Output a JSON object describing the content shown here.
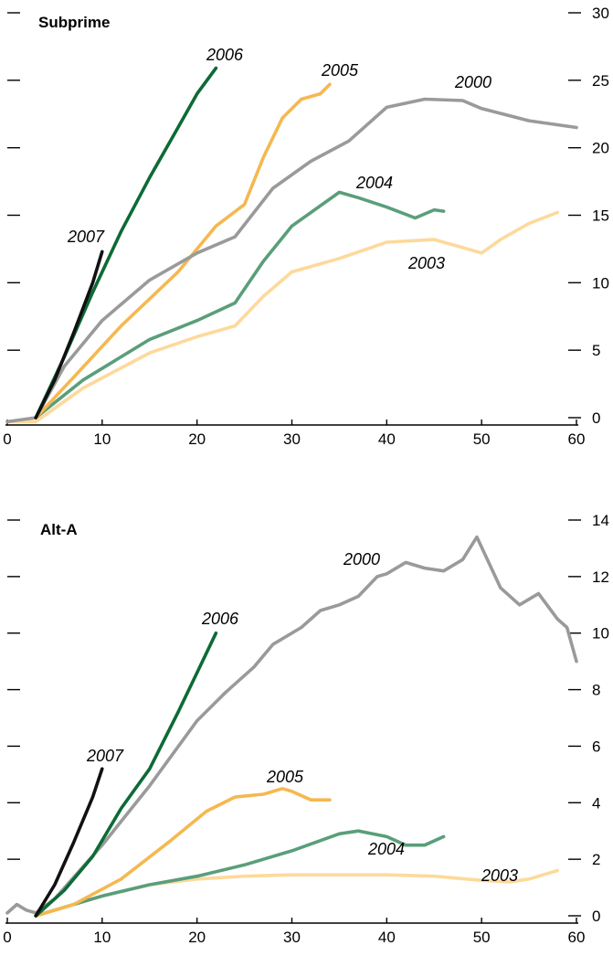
{
  "chart_data": [
    {
      "type": "line",
      "title": "Subprime",
      "xlim": [
        0,
        60
      ],
      "ylim": [
        0,
        30
      ],
      "x_ticks": [
        "0",
        "10",
        "20",
        "30",
        "40",
        "50",
        "60"
      ],
      "y_ticks": [
        "0",
        "5",
        "10",
        "15",
        "20",
        "25",
        "30"
      ],
      "legend": "none",
      "grid": false,
      "series": [
        {
          "name": "2000",
          "color": "#9a9a9a",
          "x": [
            0,
            3,
            6,
            10,
            15,
            20,
            24,
            28,
            32,
            36,
            40,
            44,
            48,
            50,
            55,
            60
          ],
          "y": [
            -0.3,
            0,
            3.8,
            7.2,
            10.2,
            12.2,
            13.4,
            17.0,
            19.0,
            20.5,
            23.0,
            23.6,
            23.5,
            22.9,
            22.0,
            21.5
          ]
        },
        {
          "name": "2003",
          "color": "#fdd99b",
          "x": [
            0,
            3,
            8,
            15,
            20,
            24,
            27,
            30,
            35,
            40,
            45,
            48,
            50,
            52,
            55,
            58
          ],
          "y": [
            -0.3,
            -0.3,
            2.2,
            4.8,
            6.0,
            6.8,
            9.0,
            10.8,
            11.8,
            13.0,
            13.2,
            12.6,
            12.2,
            13.2,
            14.4,
            15.2
          ]
        },
        {
          "name": "2004",
          "color": "#5a9e7a",
          "x": [
            3,
            8,
            15,
            20,
            24,
            27,
            30,
            35,
            37,
            40,
            43,
            45,
            46
          ],
          "y": [
            0,
            2.8,
            5.8,
            7.2,
            8.5,
            11.6,
            14.2,
            16.7,
            16.3,
            15.6,
            14.8,
            15.4,
            15.3
          ]
        },
        {
          "name": "2005",
          "color": "#f5b850",
          "x": [
            3,
            7,
            12,
            18,
            22,
            25,
            27,
            29,
            31,
            33,
            34
          ],
          "y": [
            0,
            3.0,
            6.8,
            10.8,
            14.2,
            15.8,
            19.3,
            22.2,
            23.6,
            24.0,
            24.7
          ]
        },
        {
          "name": "2006",
          "color": "#0c6b35",
          "x": [
            3,
            6,
            9,
            12,
            15,
            18,
            20,
            22
          ],
          "y": [
            0,
            4.5,
            9.3,
            13.8,
            17.8,
            21.5,
            24.0,
            25.9
          ]
        },
        {
          "name": "2007",
          "color": "#111111",
          "x": [
            3,
            5,
            7,
            9,
            10
          ],
          "y": [
            0,
            2.8,
            6.3,
            10.0,
            12.3
          ]
        }
      ]
    },
    {
      "type": "line",
      "title": "Alt-A",
      "xlim": [
        0,
        60
      ],
      "ylim": [
        0,
        14
      ],
      "x_ticks": [
        "0",
        "10",
        "20",
        "30",
        "40",
        "50",
        "60"
      ],
      "y_ticks": [
        "0",
        "2",
        "4",
        "6",
        "8",
        "10",
        "12",
        "14"
      ],
      "legend": "none",
      "grid": false,
      "series": [
        {
          "name": "2000",
          "color": "#9a9a9a",
          "x": [
            0,
            1,
            2,
            3,
            5,
            10,
            15,
            20,
            23,
            26,
            28,
            31,
            33,
            35,
            37,
            39,
            40,
            42,
            44,
            46,
            48,
            49.5,
            52,
            54,
            56,
            58,
            59,
            60
          ],
          "y": [
            0.1,
            0.4,
            0.2,
            0.1,
            0.6,
            2.5,
            4.6,
            6.9,
            7.9,
            8.8,
            9.6,
            10.2,
            10.8,
            11.0,
            11.3,
            12.0,
            12.1,
            12.5,
            12.3,
            12.2,
            12.6,
            13.4,
            11.6,
            11.0,
            11.4,
            10.5,
            10.2,
            9.0
          ]
        },
        {
          "name": "2003",
          "color": "#fdd99b",
          "x": [
            3,
            6,
            10,
            15,
            20,
            25,
            30,
            35,
            40,
            45,
            50,
            53,
            55,
            58
          ],
          "y": [
            0,
            0.3,
            0.7,
            1.1,
            1.3,
            1.4,
            1.45,
            1.45,
            1.45,
            1.4,
            1.25,
            1.2,
            1.3,
            1.6
          ]
        },
        {
          "name": "2004",
          "color": "#5a9e7a",
          "x": [
            3,
            6,
            10,
            15,
            20,
            25,
            30,
            35,
            37,
            40,
            42,
            44,
            46
          ],
          "y": [
            0,
            0.3,
            0.7,
            1.1,
            1.4,
            1.8,
            2.3,
            2.9,
            3.0,
            2.8,
            2.5,
            2.5,
            2.8
          ]
        },
        {
          "name": "2005",
          "color": "#f5b850",
          "x": [
            3,
            7,
            12,
            17,
            21,
            24,
            27,
            29,
            30,
            32,
            34
          ],
          "y": [
            0,
            0.4,
            1.3,
            2.6,
            3.7,
            4.2,
            4.3,
            4.5,
            4.4,
            4.1,
            4.1
          ]
        },
        {
          "name": "2006",
          "color": "#0c6b35",
          "x": [
            3,
            6,
            9,
            12,
            15,
            18,
            20,
            22
          ],
          "y": [
            0,
            0.9,
            2.1,
            3.8,
            5.2,
            7.2,
            8.6,
            10.0
          ]
        },
        {
          "name": "2007",
          "color": "#111111",
          "x": [
            3,
            5,
            7,
            9,
            10
          ],
          "y": [
            0,
            1.1,
            2.6,
            4.2,
            5.2
          ]
        }
      ]
    }
  ]
}
